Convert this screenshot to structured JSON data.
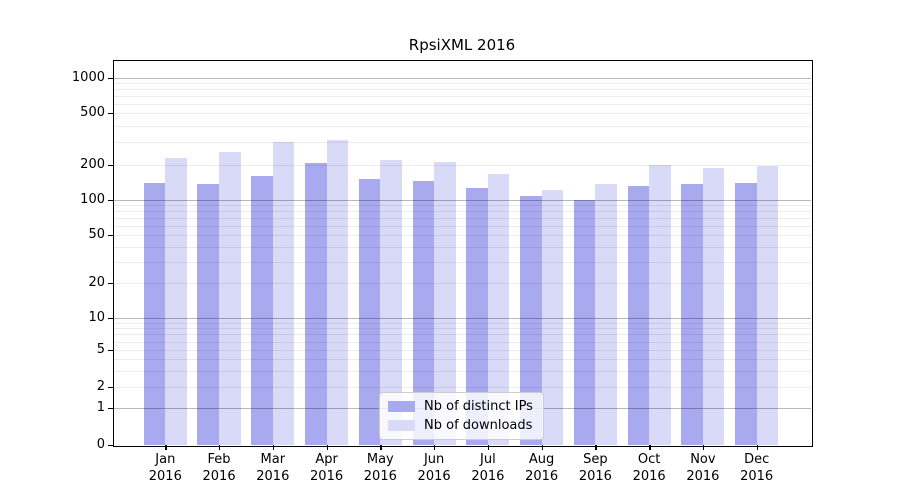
{
  "chart_data": {
    "type": "bar",
    "title": "RpsiXML 2016",
    "categories": [
      "Jan",
      "Feb",
      "Mar",
      "Apr",
      "May",
      "Jun",
      "Jul",
      "Aug",
      "Sep",
      "Oct",
      "Nov",
      "Dec"
    ],
    "category_year": "2016",
    "series": [
      {
        "name": "Nb of distinct IPs",
        "color": "#a9a9f0",
        "values": [
          140,
          137,
          160,
          207,
          152,
          146,
          126,
          108,
          100,
          132,
          137,
          141
        ]
      },
      {
        "name": "Nb of downloads",
        "color": "#d9d9f8",
        "values": [
          228,
          252,
          300,
          310,
          220,
          210,
          168,
          122,
          136,
          200,
          189,
          198
        ]
      }
    ],
    "xlabel": "",
    "ylabel": "",
    "yscale": "symlog",
    "ylim": [
      0,
      1000
    ],
    "ytick_values": [
      0,
      1,
      2,
      5,
      10,
      20,
      50,
      100,
      200,
      500,
      1000
    ],
    "ytick_labels": [
      "0",
      "1",
      "2",
      "5",
      "10",
      "20",
      "50",
      "100",
      "200",
      "500",
      "1000"
    ],
    "major_grid_values": [
      1,
      10,
      100,
      1000
    ],
    "minor_grid_values": [
      2,
      3,
      4,
      5,
      6,
      7,
      8,
      9,
      20,
      30,
      40,
      50,
      60,
      70,
      80,
      90,
      200,
      300,
      400,
      500,
      600,
      700,
      800,
      900
    ],
    "grid": true,
    "legend_position": "bottom-center"
  }
}
